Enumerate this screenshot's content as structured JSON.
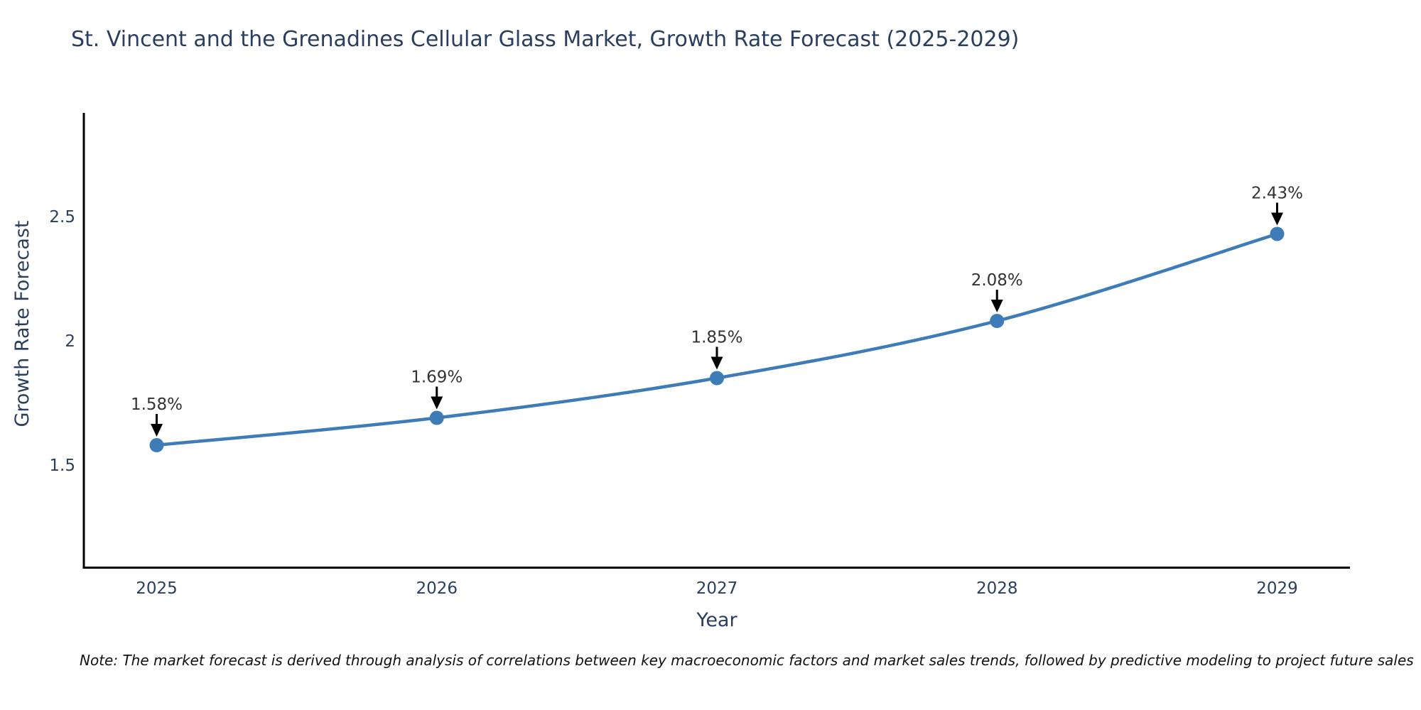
{
  "title": "St. Vincent and the Grenadines Cellular Glass Market, Growth Rate Forecast (2025-2029)",
  "note": "Note: The market forecast is derived through analysis of correlations between key macroeconomic factors and market sales trends, followed by predictive modeling to project future sales",
  "colors": {
    "line": "#3e7cb8",
    "marker": "#3e7cb8",
    "axis": "#000000",
    "text": "#2a3f5f",
    "annotation": "#333333"
  },
  "chart_data": {
    "type": "line",
    "title": "St. Vincent and the Grenadines Cellular Glass Market, Growth Rate Forecast (2025-2029)",
    "xlabel": "Year",
    "ylabel": "Growth Rate Forecast",
    "categories": [
      "2025",
      "2026",
      "2027",
      "2028",
      "2029"
    ],
    "x": [
      2025,
      2026,
      2027,
      2028,
      2029
    ],
    "values": [
      1.58,
      1.69,
      1.85,
      2.08,
      2.43
    ],
    "point_labels": [
      "1.58%",
      "1.69%",
      "1.85%",
      "2.08%",
      "2.43%"
    ],
    "yticks": [
      1.5,
      2,
      2.5
    ],
    "ytick_labels": [
      "1.5",
      "2",
      "2.5"
    ],
    "xlim": [
      2024.74,
      2029.26
    ],
    "ylim": [
      1.083,
      2.917
    ],
    "grid": false,
    "legend_position": "none",
    "line_shape": "spline",
    "marker_style": "circle"
  }
}
